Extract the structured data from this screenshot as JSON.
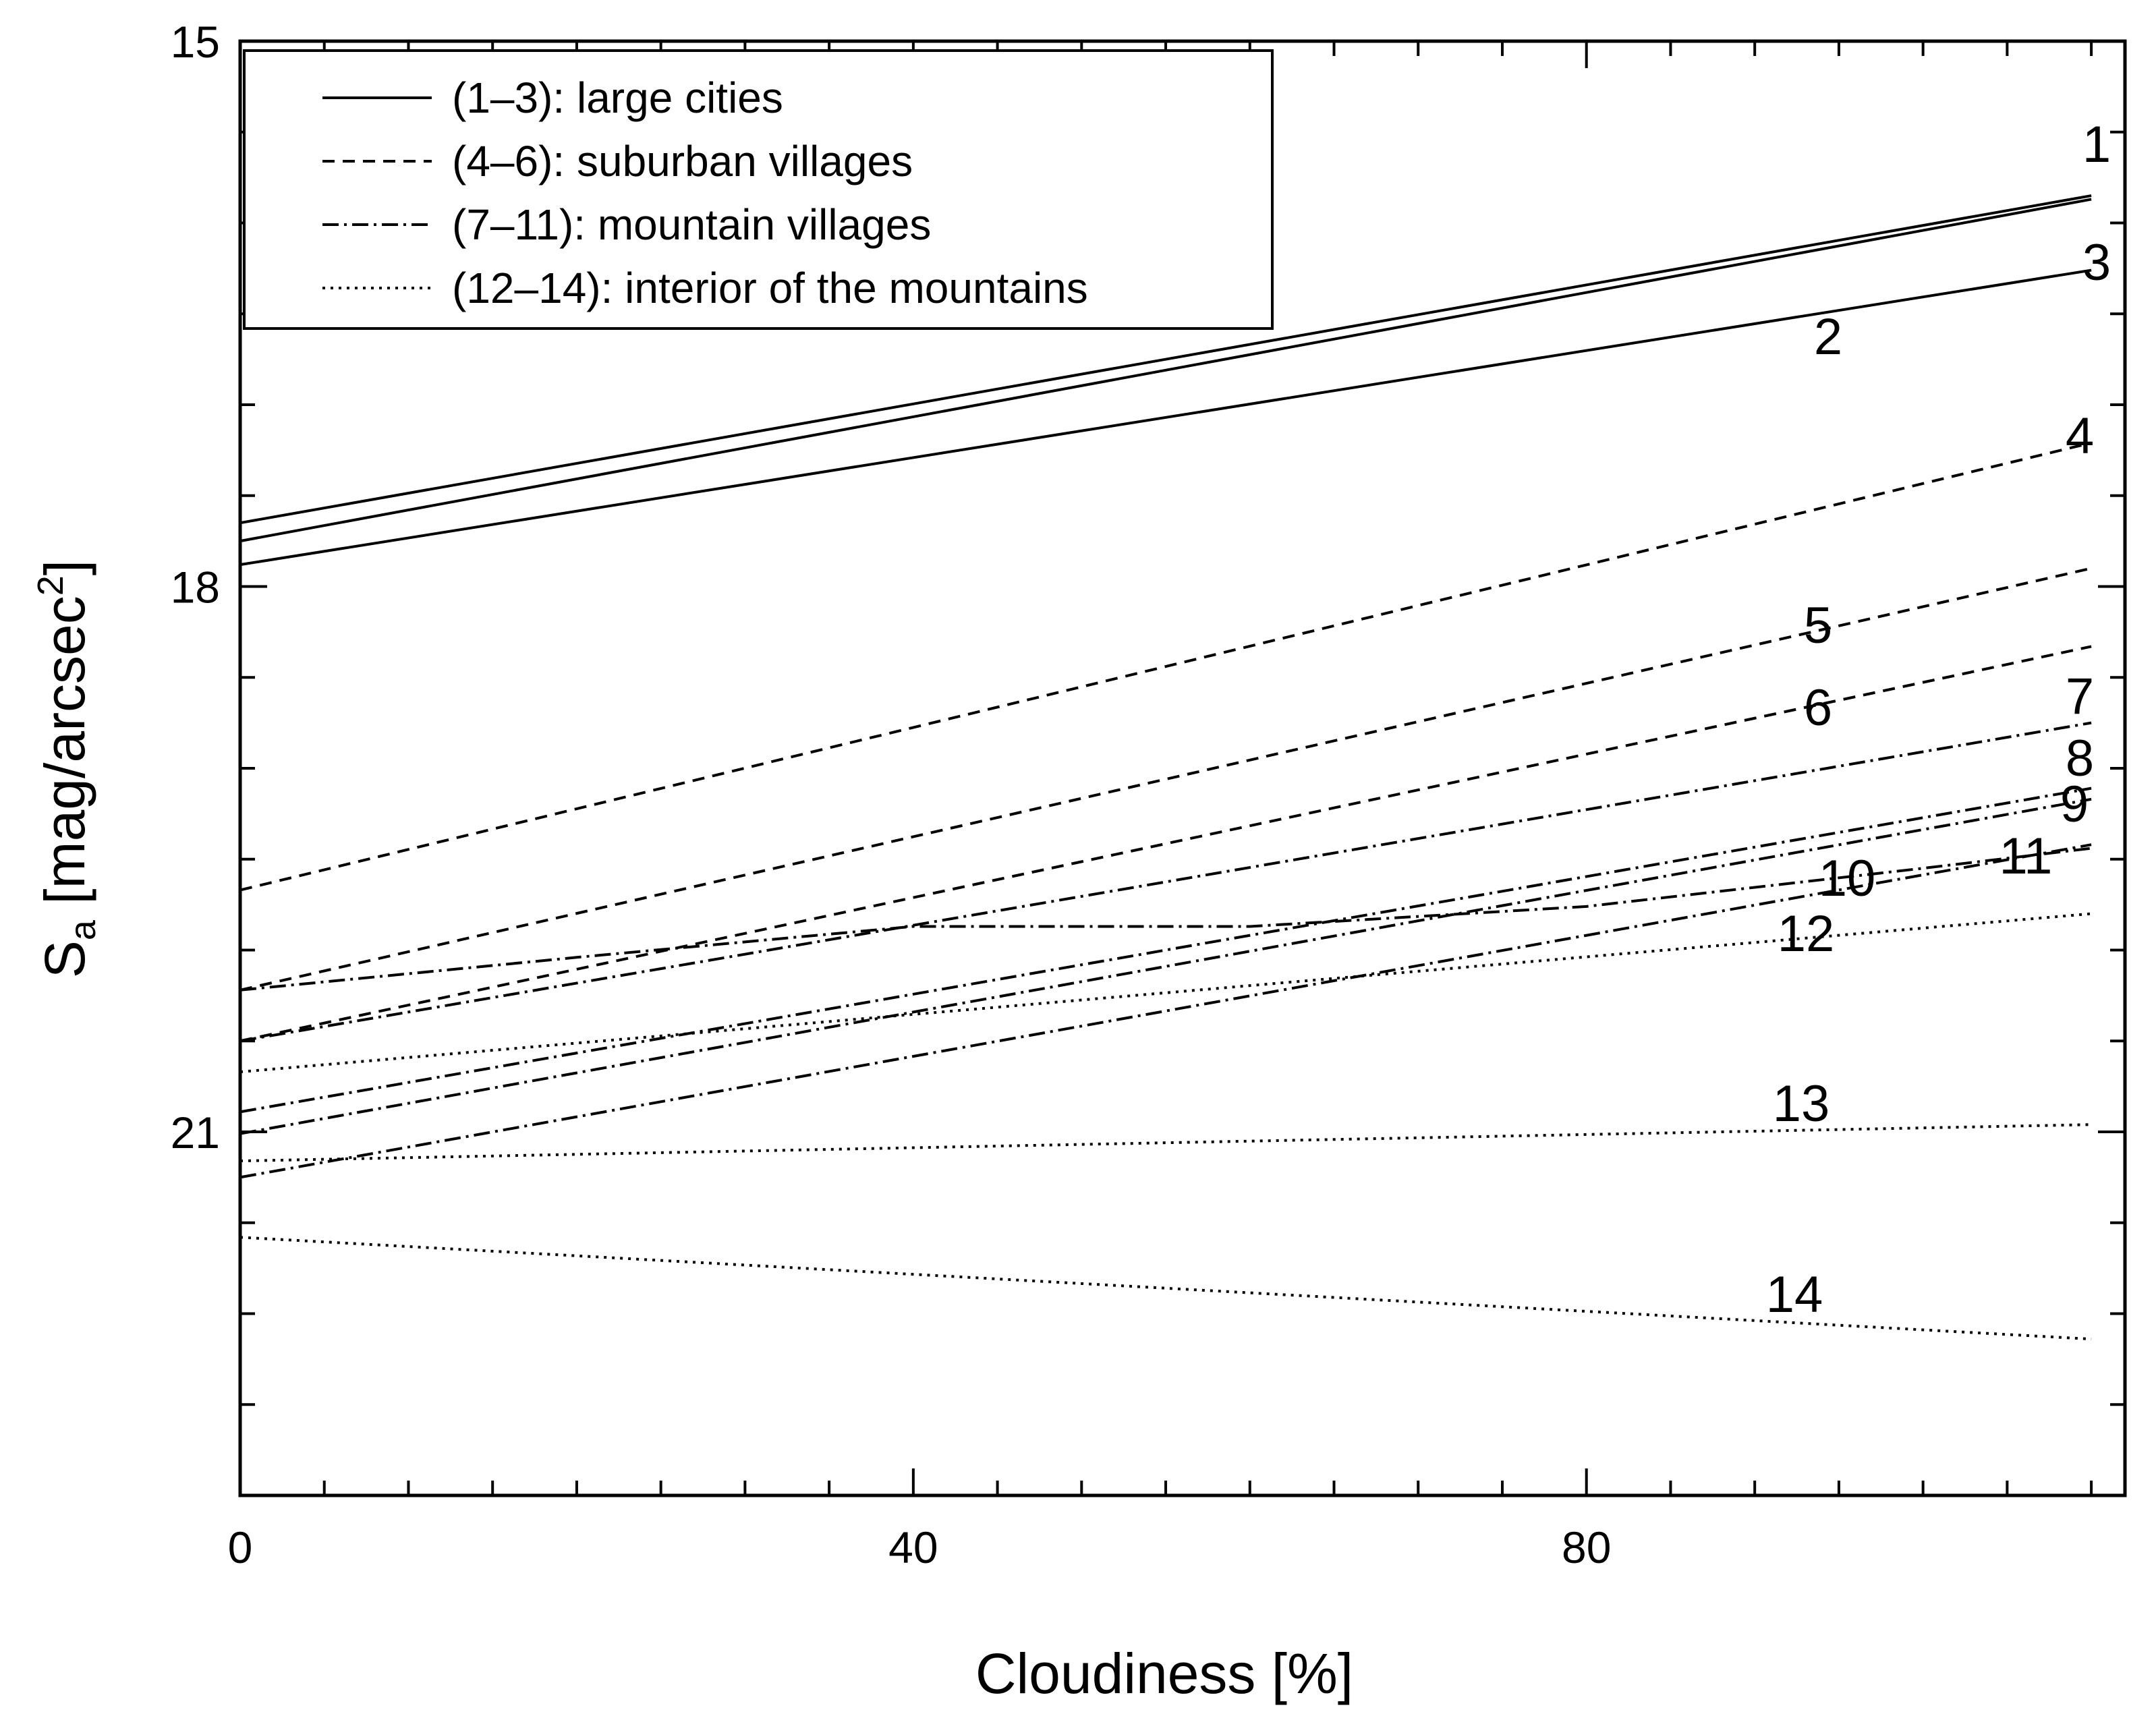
{
  "chart_data": {
    "type": "line",
    "xlabel": "Cloudiness [%]",
    "ylabel": {
      "main": "S",
      "sub": "a",
      "unit_prefix": " [mag/arcsec",
      "sup": "2",
      "unit_suffix": "]"
    },
    "xlim": [
      0,
      112
    ],
    "ylim": [
      15,
      23
    ],
    "y_inverted": true,
    "x_ticks": [
      "0",
      "40",
      "80"
    ],
    "y_ticks": [
      "15",
      "18",
      "21"
    ],
    "grid": false,
    "legend_position": "top-left",
    "legend": [
      {
        "label": "(1–3): large cities",
        "style": "solid"
      },
      {
        "label": "(4–6): suburban villages",
        "style": "dashed"
      },
      {
        "label": "(7–11): mountain villages",
        "style": "dashdot"
      },
      {
        "label": "(12–14): interior of the mountains",
        "style": "dotted"
      }
    ],
    "series": [
      {
        "name": "1",
        "style": "solid",
        "x": [
          0,
          110
        ],
        "y": [
          17.65,
          15.85
        ]
      },
      {
        "name": "2",
        "style": "solid",
        "x": [
          0,
          110
        ],
        "y": [
          17.75,
          15.87
        ]
      },
      {
        "name": "3",
        "style": "solid",
        "x": [
          0,
          110
        ],
        "y": [
          17.88,
          16.26
        ]
      },
      {
        "name": "4",
        "style": "dashed",
        "x": [
          0,
          110
        ],
        "y": [
          19.67,
          17.21
        ]
      },
      {
        "name": "5",
        "style": "dashed",
        "x": [
          0,
          110
        ],
        "y": [
          20.22,
          17.9
        ]
      },
      {
        "name": "6",
        "style": "dashed",
        "x": [
          0,
          110
        ],
        "y": [
          20.5,
          18.33
        ]
      },
      {
        "name": "7",
        "style": "dashdot",
        "x": [
          0,
          110
        ],
        "y": [
          20.5,
          18.75
        ]
      },
      {
        "name": "8",
        "style": "dashdot",
        "x": [
          0,
          110
        ],
        "y": [
          20.89,
          19.11
        ]
      },
      {
        "name": "9",
        "style": "dashdot",
        "x": [
          0,
          110
        ],
        "y": [
          21.01,
          19.17
        ]
      },
      {
        "name": "10",
        "style": "dashdot",
        "x": [
          0,
          20,
          40,
          60,
          80,
          100,
          110
        ],
        "y": [
          20.22,
          20.04,
          19.87,
          19.87,
          19.76,
          19.55,
          19.44
        ]
      },
      {
        "name": "11",
        "style": "dashdot",
        "x": [
          0,
          110
        ],
        "y": [
          21.25,
          19.42
        ]
      },
      {
        "name": "12",
        "style": "dotted",
        "x": [
          0,
          110
        ],
        "y": [
          20.67,
          19.8
        ]
      },
      {
        "name": "13",
        "style": "dotted",
        "x": [
          0,
          110
        ],
        "y": [
          21.16,
          20.96
        ]
      },
      {
        "name": "14",
        "style": "dotted",
        "x": [
          0,
          110
        ],
        "y": [
          21.58,
          22.14
        ]
      }
    ]
  }
}
